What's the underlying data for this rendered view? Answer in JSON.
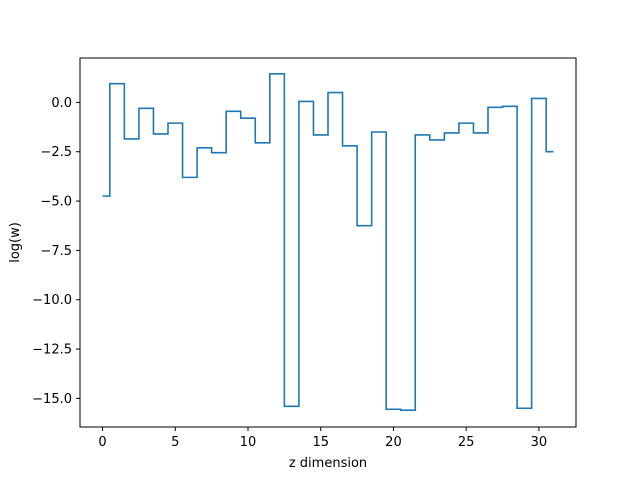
{
  "chart_data": {
    "type": "line",
    "drawstyle": "steps-mid",
    "title": "",
    "xlabel": "z dimension",
    "ylabel": "log(w)",
    "xlim": [
      -1.55,
      32.55
    ],
    "ylim": [
      -16.45,
      2.25
    ],
    "xticks": [
      0,
      5,
      10,
      15,
      20,
      25,
      30
    ],
    "yticks": [
      0.0,
      -2.5,
      -5.0,
      -7.5,
      -10.0,
      -12.5,
      -15.0
    ],
    "xtick_labels": [
      "0",
      "5",
      "10",
      "15",
      "20",
      "25",
      "30"
    ],
    "ytick_labels": [
      "0.0",
      "−2.5",
      "−5.0",
      "−7.5",
      "−10.0",
      "−12.5",
      "−15.0"
    ],
    "grid": false,
    "color": "#1f77b4",
    "series": [
      {
        "x": [
          0,
          1,
          2,
          3,
          4,
          5,
          6,
          7,
          8,
          9,
          10,
          11,
          12,
          13,
          14,
          15,
          16,
          17,
          18,
          19,
          20,
          21,
          22,
          23,
          24,
          25,
          26,
          27,
          28,
          29,
          30,
          31
        ],
        "values": [
          -4.75,
          0.95,
          -1.85,
          -0.3,
          -1.6,
          -1.05,
          -3.8,
          -2.3,
          -2.55,
          -0.45,
          -0.8,
          -2.05,
          1.45,
          -15.4,
          0.05,
          -1.65,
          0.5,
          -2.2,
          -6.25,
          -1.5,
          -15.55,
          -15.6,
          -1.65,
          -1.9,
          -1.55,
          -1.05,
          -1.55,
          -0.25,
          -0.2,
          -15.5,
          0.2,
          -2.5
        ]
      }
    ]
  }
}
